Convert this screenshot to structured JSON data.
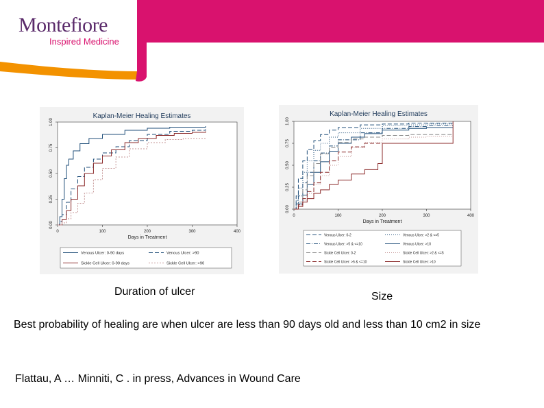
{
  "brand": {
    "name": "Montefiore",
    "tagline": "Inspired Medicine",
    "colors": {
      "magenta": "#d9126e",
      "orange": "#f39200",
      "purple": "#5a2a6a"
    }
  },
  "captions": {
    "left": "Duration of ulcer",
    "right": "Size"
  },
  "summary_text": "Best probability of healing are when ulcer are less than 90 days old and less than 10 cm2 in size",
  "citation": "Flattau, A … Minniti, C . in press, Advances in Wound Care",
  "chart_data": [
    {
      "type": "line",
      "title": "Kaplan-Meier Healing Estimates",
      "xlabel": "Days in Treatment",
      "ylabel": "",
      "xlim": [
        0,
        400
      ],
      "ylim": [
        0,
        1
      ],
      "xticks": [
        "0",
        "100",
        "200",
        "300",
        "400"
      ],
      "yticks": [
        "0.00",
        "0.25",
        "0.50",
        "0.75",
        "1.00"
      ],
      "legend_position": "bottom",
      "grid": false,
      "series": [
        {
          "name": "Venous Ulcer: 0-90 days",
          "color": "#1f4e79",
          "dash": "",
          "points": [
            [
              0,
              0
            ],
            [
              5,
              0.08
            ],
            [
              10,
              0.25
            ],
            [
              15,
              0.45
            ],
            [
              20,
              0.58
            ],
            [
              25,
              0.64
            ],
            [
              35,
              0.72
            ],
            [
              50,
              0.79
            ],
            [
              70,
              0.84
            ],
            [
              100,
              0.88
            ],
            [
              150,
              0.92
            ],
            [
              200,
              0.94
            ],
            [
              250,
              0.95
            ],
            [
              300,
              0.95
            ],
            [
              330,
              0.96
            ]
          ]
        },
        {
          "name": "Venous Ulcer: >90",
          "color": "#1f4e79",
          "dash": "6,3",
          "points": [
            [
              0,
              0
            ],
            [
              5,
              0.03
            ],
            [
              10,
              0.1
            ],
            [
              20,
              0.22
            ],
            [
              30,
              0.35
            ],
            [
              45,
              0.47
            ],
            [
              60,
              0.56
            ],
            [
              80,
              0.64
            ],
            [
              100,
              0.7
            ],
            [
              130,
              0.76
            ],
            [
              160,
              0.82
            ],
            [
              200,
              0.88
            ],
            [
              250,
              0.91
            ],
            [
              300,
              0.92
            ],
            [
              330,
              0.93
            ]
          ]
        },
        {
          "name": "Sickle Cell Ulcer: 0-90 days",
          "color": "#8b2a2a",
          "dash": "",
          "points": [
            [
              0,
              0
            ],
            [
              10,
              0.05
            ],
            [
              20,
              0.14
            ],
            [
              30,
              0.25
            ],
            [
              45,
              0.38
            ],
            [
              60,
              0.5
            ],
            [
              80,
              0.6
            ],
            [
              100,
              0.67
            ],
            [
              120,
              0.73
            ],
            [
              150,
              0.8
            ],
            [
              180,
              0.84
            ],
            [
              220,
              0.87
            ],
            [
              260,
              0.89
            ],
            [
              300,
              0.9
            ],
            [
              330,
              0.91
            ]
          ]
        },
        {
          "name": "Sickle Cell Ulcer: >90",
          "color": "#c49494",
          "dash": "2,2",
          "points": [
            [
              0,
              0
            ],
            [
              10,
              0.02
            ],
            [
              20,
              0.06
            ],
            [
              30,
              0.12
            ],
            [
              45,
              0.21
            ],
            [
              60,
              0.31
            ],
            [
              80,
              0.44
            ],
            [
              100,
              0.55
            ],
            [
              130,
              0.66
            ],
            [
              160,
              0.74
            ],
            [
              200,
              0.8
            ],
            [
              240,
              0.83
            ],
            [
              280,
              0.84
            ],
            [
              330,
              0.85
            ]
          ]
        }
      ]
    },
    {
      "type": "line",
      "title": "Kaplan-Meier Healing Estimates",
      "xlabel": "Days in Treatment",
      "ylabel": "",
      "xlim": [
        0,
        400
      ],
      "ylim": [
        0,
        1
      ],
      "xticks": [
        "0",
        "100",
        "200",
        "300",
        "400"
      ],
      "yticks": [
        "0.00",
        "0.25",
        "0.50",
        "0.75",
        "1.00"
      ],
      "legend_position": "bottom",
      "grid": false,
      "series": [
        {
          "name": "Venous Ulcer: 0-2",
          "color": "#1f4e79",
          "dash": "6,3",
          "points": [
            [
              0,
              0
            ],
            [
              5,
              0.15
            ],
            [
              10,
              0.35
            ],
            [
              20,
              0.55
            ],
            [
              30,
              0.68
            ],
            [
              45,
              0.78
            ],
            [
              60,
              0.85
            ],
            [
              80,
              0.9
            ],
            [
              100,
              0.93
            ],
            [
              150,
              0.96
            ],
            [
              200,
              0.97
            ],
            [
              260,
              0.98
            ],
            [
              300,
              0.98
            ],
            [
              360,
              0.98
            ]
          ]
        },
        {
          "name": "Venous Ulcer: >2 & <=5",
          "color": "#1f4e79",
          "dash": "1,2",
          "points": [
            [
              0,
              0
            ],
            [
              5,
              0.1
            ],
            [
              10,
              0.24
            ],
            [
              20,
              0.42
            ],
            [
              30,
              0.55
            ],
            [
              45,
              0.67
            ],
            [
              60,
              0.75
            ],
            [
              80,
              0.82
            ],
            [
              100,
              0.87
            ],
            [
              150,
              0.92
            ],
            [
              200,
              0.95
            ],
            [
              260,
              0.96
            ],
            [
              300,
              0.97
            ],
            [
              360,
              0.97
            ]
          ]
        },
        {
          "name": "Venous Ulcer: >5 & <=10",
          "color": "#1f4e79",
          "dash": "6,2,1,2",
          "points": [
            [
              0,
              0
            ],
            [
              5,
              0.06
            ],
            [
              10,
              0.15
            ],
            [
              20,
              0.3
            ],
            [
              30,
              0.42
            ],
            [
              45,
              0.55
            ],
            [
              60,
              0.64
            ],
            [
              80,
              0.72
            ],
            [
              100,
              0.79
            ],
            [
              150,
              0.87
            ],
            [
              200,
              0.92
            ],
            [
              260,
              0.94
            ],
            [
              300,
              0.95
            ],
            [
              360,
              0.95
            ]
          ]
        },
        {
          "name": "Venous Ulcer: >10",
          "color": "#1f4e79",
          "dash": "",
          "points": [
            [
              0,
              0
            ],
            [
              10,
              0.06
            ],
            [
              20,
              0.16
            ],
            [
              30,
              0.28
            ],
            [
              45,
              0.42
            ],
            [
              60,
              0.54
            ],
            [
              80,
              0.66
            ],
            [
              100,
              0.75
            ],
            [
              130,
              0.82
            ],
            [
              160,
              0.86
            ],
            [
              200,
              0.9
            ],
            [
              260,
              0.92
            ],
            [
              300,
              0.93
            ],
            [
              360,
              0.93
            ]
          ]
        },
        {
          "name": "Sickle Cell Ulcer: 0-2",
          "color": "#8a8a8a",
          "dash": "6,3",
          "points": [
            [
              0,
              0
            ],
            [
              10,
              0.08
            ],
            [
              20,
              0.22
            ],
            [
              30,
              0.38
            ],
            [
              45,
              0.52
            ],
            [
              60,
              0.63
            ],
            [
              80,
              0.7
            ],
            [
              100,
              0.76
            ],
            [
              130,
              0.8
            ],
            [
              160,
              0.82
            ],
            [
              200,
              0.84
            ],
            [
              260,
              0.85
            ],
            [
              300,
              0.85
            ],
            [
              360,
              0.85
            ]
          ]
        },
        {
          "name": "Sickle Cell Ulcer: >2 & <=5",
          "color": "#c49494",
          "dash": "1,2",
          "points": [
            [
              0,
              0
            ],
            [
              10,
              0.04
            ],
            [
              20,
              0.1
            ],
            [
              30,
              0.18
            ],
            [
              45,
              0.28
            ],
            [
              60,
              0.38
            ],
            [
              80,
              0.5
            ],
            [
              100,
              0.6
            ],
            [
              130,
              0.7
            ],
            [
              160,
              0.76
            ],
            [
              200,
              0.8
            ],
            [
              260,
              0.82
            ],
            [
              300,
              0.83
            ],
            [
              360,
              0.83
            ]
          ]
        },
        {
          "name": "Sickle Cell Ulcer: >5 & <=10",
          "color": "#8b2a2a",
          "dash": "6,3",
          "points": [
            [
              0,
              0
            ],
            [
              10,
              0.05
            ],
            [
              20,
              0.12
            ],
            [
              30,
              0.2
            ],
            [
              45,
              0.3
            ],
            [
              60,
              0.42
            ],
            [
              80,
              0.55
            ],
            [
              100,
              0.65
            ],
            [
              130,
              0.71
            ],
            [
              160,
              0.75
            ],
            [
              200,
              0.75
            ],
            [
              260,
              0.75
            ],
            [
              300,
              0.75
            ],
            [
              360,
              0.75
            ]
          ]
        },
        {
          "name": "Sickle Cell Ulcer: >10",
          "color": "#8b2a2a",
          "dash": "",
          "points": [
            [
              0,
              0
            ],
            [
              10,
              0.03
            ],
            [
              20,
              0.08
            ],
            [
              30,
              0.12
            ],
            [
              45,
              0.18
            ],
            [
              60,
              0.22
            ],
            [
              80,
              0.28
            ],
            [
              100,
              0.33
            ],
            [
              130,
              0.4
            ],
            [
              160,
              0.45
            ],
            [
              190,
              0.52
            ],
            [
              200,
              0.75
            ],
            [
              260,
              0.75
            ],
            [
              300,
              0.75
            ],
            [
              360,
              0.75
            ],
            [
              360,
              1.0
            ]
          ]
        }
      ]
    }
  ]
}
